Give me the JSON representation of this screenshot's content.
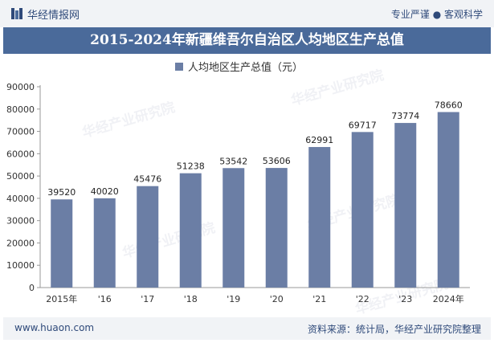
{
  "header": {
    "brand": "华经情报网",
    "tagline": "专业严谨 ● 客观科学"
  },
  "watermark": "华经产业研究院",
  "footer": {
    "site": "www.huaon.com",
    "source": "资料来源：统计局，华经产业研究院整理"
  },
  "colors": {
    "bar": "#6b7ea5",
    "title_bg": "#4a6a9a",
    "brand_text": "#2f4a7a"
  },
  "chart_data": {
    "type": "bar",
    "title": "2015-2024年新疆维吾尔自治区人均地区生产总值",
    "legend_position": "top",
    "categories": [
      "2015年",
      "'16",
      "'17",
      "'18",
      "'19",
      "'20",
      "'21",
      "'22",
      "'23",
      "2024年"
    ],
    "series": [
      {
        "name": "人均地区生产总值（元）",
        "values": [
          39520,
          40020,
          45476,
          51238,
          53542,
          53606,
          62991,
          69717,
          73774,
          78660
        ]
      }
    ],
    "ylim": [
      0,
      90000
    ],
    "yticks": [
      0,
      10000,
      20000,
      30000,
      40000,
      50000,
      60000,
      70000,
      80000,
      90000
    ],
    "grid": false
  }
}
